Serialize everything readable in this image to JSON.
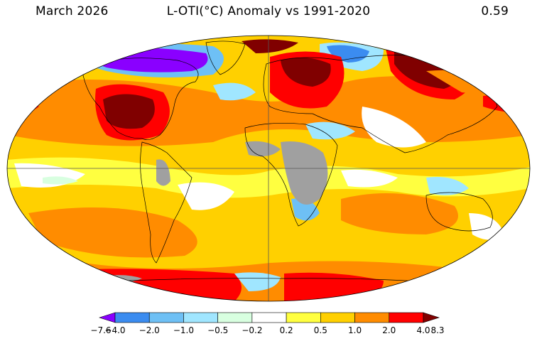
{
  "header": {
    "date": "March 2026",
    "title": "L-OTI(°C) Anomaly vs 1991-2020",
    "global_mean": "0.59"
  },
  "colorbar": {
    "ticks": [
      "−7.6",
      "−4.0",
      "−2.0",
      "−1.0",
      "−0.5",
      "−0.2",
      "0.2",
      "0.5",
      "1.0",
      "2.0",
      "4.0",
      "8.3"
    ],
    "colors": [
      "#8a00ff",
      "#3b8cf0",
      "#6ec0f5",
      "#a0e6ff",
      "#d8ffe0",
      "#ffffff",
      "#ffff40",
      "#ffd000",
      "#ff8c00",
      "#ff0000",
      "#800000"
    ]
  },
  "palette": {
    "missing": "#a0a0a0",
    "outline": "#000000"
  }
}
